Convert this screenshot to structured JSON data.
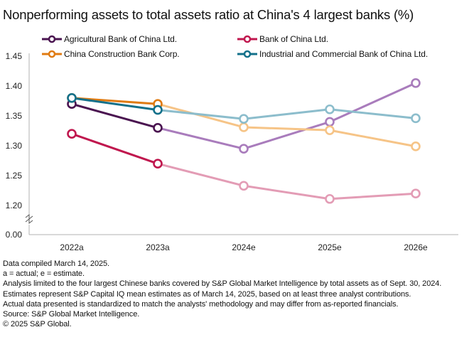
{
  "chart_data": {
    "type": "line",
    "title": "Nonperforming assets to total assets ratio at China's 4 largest banks (%)",
    "xlabel": "",
    "ylabel": "",
    "categories": [
      "2022a",
      "2023a",
      "2024e",
      "2025e",
      "2026e"
    ],
    "actual_count": 2,
    "yticks": [
      "1.45",
      "1.40",
      "1.35",
      "1.30",
      "1.25",
      "1.20",
      "0.00"
    ],
    "ylim": [
      1.15,
      1.45
    ],
    "axis_break": true,
    "grid": false,
    "legend_position": "top",
    "series": [
      {
        "name": "Agricultural Bank of China Ltd.",
        "color": "#4a1450",
        "estimate_color": "#a97cbc",
        "values": [
          1.37,
          1.33,
          1.295,
          1.34,
          1.405
        ]
      },
      {
        "name": "Bank of China Ltd.",
        "color": "#c0174e",
        "estimate_color": "#e39cb5",
        "values": [
          1.32,
          1.27,
          1.233,
          1.211,
          1.22
        ]
      },
      {
        "name": "China Construction Bank Corp.",
        "color": "#e07b12",
        "estimate_color": "#f6c487",
        "values": [
          1.38,
          1.37,
          1.331,
          1.326,
          1.299
        ]
      },
      {
        "name": "Industrial and Commercial Bank of China Ltd.",
        "color": "#13708a",
        "estimate_color": "#8cbdcc",
        "values": [
          1.38,
          1.36,
          1.345,
          1.361,
          1.346
        ]
      }
    ]
  },
  "notes": [
    "Data compiled March 14, 2025.",
    "a = actual; e = estimate.",
    "Analysis limited to the four largest Chinese banks covered by S&P Global Market Intelligence by total assets as of Sept. 30, 2024.",
    "Estimates represent S&P Capital IQ mean estimates as of March 14, 2025, based on at least three analyst contributions.",
    "Actual data presented is standardized to match the analysts' methodology and may differ from as-reported financials.",
    "Source: S&P Global Market Intelligence.",
    "© 2025 S&P Global."
  ]
}
